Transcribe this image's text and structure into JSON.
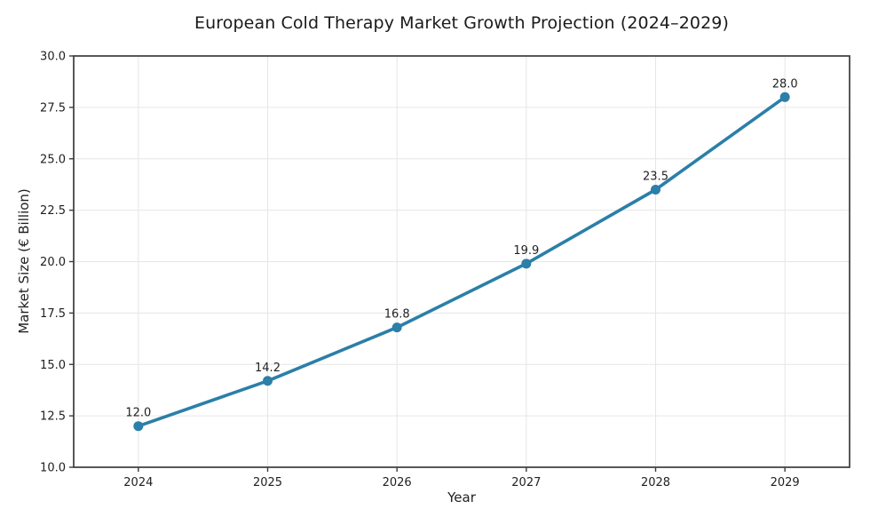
{
  "chart_data": {
    "type": "line",
    "title": "European Cold Therapy Market Growth Projection (2024–2029)",
    "xlabel": "Year",
    "ylabel": "Market Size (€ Billion)",
    "x": [
      2024,
      2025,
      2026,
      2027,
      2028,
      2029
    ],
    "values": [
      12.0,
      14.2,
      16.8,
      19.9,
      23.5,
      28.0
    ],
    "point_labels": [
      "12.0",
      "14.2",
      "16.8",
      "19.9",
      "23.5",
      "28.0"
    ],
    "xticks": [
      "2024",
      "2025",
      "2026",
      "2027",
      "2028",
      "2029"
    ],
    "yticks": [
      "10.0",
      "12.5",
      "15.0",
      "17.5",
      "20.0",
      "22.5",
      "25.0",
      "27.5",
      "30.0"
    ],
    "xlim": [
      2023.5,
      2029.5
    ],
    "ylim": [
      10.0,
      30.0
    ],
    "grid": true,
    "legend": "none",
    "colors": {
      "line": "#2b7fa8",
      "marker": "#2b7fa8",
      "grid": "#e6e6e6",
      "spine": "#3b3b3b",
      "text": "#1f1f1f",
      "background": "#ffffff"
    }
  }
}
